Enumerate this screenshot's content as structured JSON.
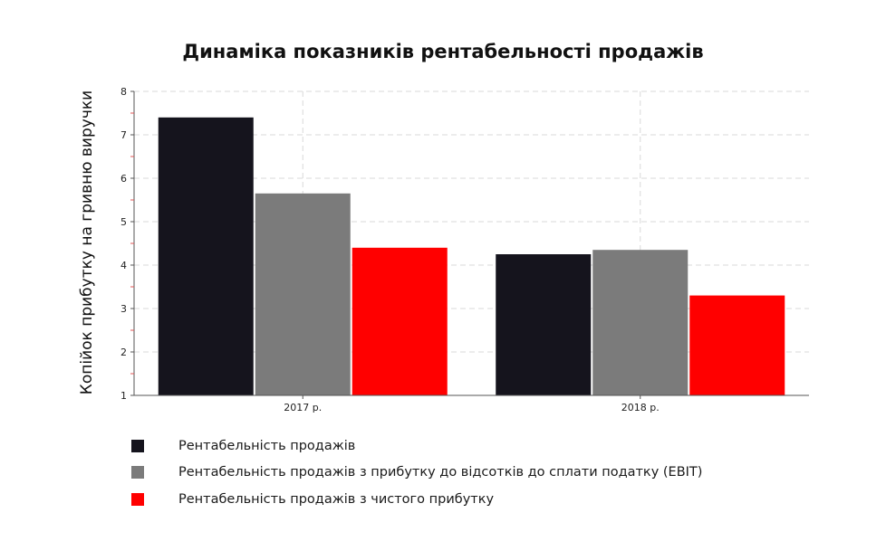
{
  "chart_data": {
    "type": "bar",
    "title": "Динаміка показників рентабельності продажів",
    "ylabel": "Копійок прибутку на гривню виручки",
    "xlabel": "",
    "categories": [
      "2017 р.",
      "2018 р."
    ],
    "ylim": [
      1,
      8
    ],
    "yticks": [
      1,
      2,
      3,
      4,
      5,
      6,
      7,
      8
    ],
    "grid": true,
    "legend_position": "bottom-left",
    "series": [
      {
        "name": "Рентабельність продажів",
        "values": [
          7.4,
          4.25
        ],
        "color": "#15141d"
      },
      {
        "name": "Рентабельність продажів з прибутку до відсотків до сплати податку (EBIT)",
        "values": [
          5.65,
          4.35
        ],
        "color": "#7b7b7b"
      },
      {
        "name": "Рентабельність продажів з чистого прибутку",
        "values": [
          4.4,
          3.3
        ],
        "color": "#ff0000"
      }
    ]
  }
}
